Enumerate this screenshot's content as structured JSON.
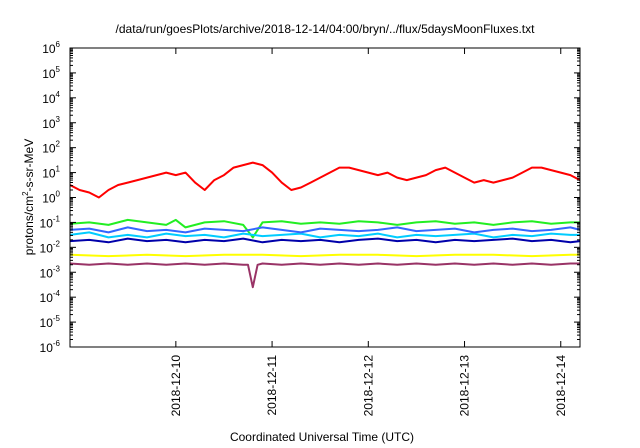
{
  "chart_data": {
    "type": "line",
    "title": "/data/run/goesPlots/archive/2018-12-14/04:00/bryn/../flux/5daysMoonFluxes.txt",
    "xlabel": "Coordinated Universal Time (UTC)",
    "ylabel": {
      "prefix": "protons/cm",
      "superscript": "2",
      "suffix": "-s-sr-MeV"
    },
    "yscale": "log",
    "ylim_exponents": [
      -6,
      6
    ],
    "y_tick_labels": [
      {
        "base": "10",
        "exp": "-6"
      },
      {
        "base": "10",
        "exp": "-5"
      },
      {
        "base": "10",
        "exp": "-4"
      },
      {
        "base": "10",
        "exp": "-3"
      },
      {
        "base": "10",
        "exp": "-2"
      },
      {
        "base": "10",
        "exp": "-1"
      },
      {
        "base": "10",
        "exp": "0"
      },
      {
        "base": "10",
        "exp": "1"
      },
      {
        "base": "10",
        "exp": "2"
      },
      {
        "base": "10",
        "exp": "3"
      },
      {
        "base": "10",
        "exp": "4"
      },
      {
        "base": "10",
        "exp": "5"
      },
      {
        "base": "10",
        "exp": "6"
      }
    ],
    "x_tick_labels": [
      "2018-12-10",
      "2018-12-11",
      "2018-12-12",
      "2018-12-13",
      "2018-12-14"
    ],
    "xlim_days": [
      -1.1,
      4.2
    ],
    "x_tick_days": [
      0,
      1,
      2,
      3,
      4
    ],
    "grid": false,
    "legend": "none",
    "series": [
      {
        "color": "#ff0000",
        "x_days": [
          -1.1,
          -1.0,
          -0.9,
          -0.8,
          -0.7,
          -0.6,
          -0.5,
          -0.4,
          -0.3,
          -0.2,
          -0.1,
          0.0,
          0.1,
          0.2,
          0.3,
          0.4,
          0.5,
          0.6,
          0.7,
          0.8,
          0.9,
          1.0,
          1.1,
          1.2,
          1.3,
          1.4,
          1.5,
          1.6,
          1.7,
          1.8,
          1.9,
          2.0,
          2.1,
          2.2,
          2.3,
          2.4,
          2.5,
          2.6,
          2.7,
          2.8,
          2.9,
          3.0,
          3.1,
          3.2,
          3.3,
          3.4,
          3.5,
          3.6,
          3.7,
          3.8,
          3.9,
          4.0,
          4.1,
          4.2
        ],
        "log10_values": [
          0.5,
          0.3,
          0.2,
          0.0,
          0.3,
          0.5,
          0.6,
          0.7,
          0.8,
          0.9,
          1.0,
          0.9,
          1.0,
          0.6,
          0.3,
          0.7,
          0.9,
          1.2,
          1.3,
          1.4,
          1.3,
          1.0,
          0.6,
          0.3,
          0.4,
          0.6,
          0.8,
          1.0,
          1.2,
          1.2,
          1.1,
          1.0,
          0.9,
          1.0,
          0.8,
          0.7,
          0.8,
          0.9,
          1.1,
          1.2,
          1.0,
          0.8,
          0.6,
          0.7,
          0.6,
          0.7,
          0.8,
          1.0,
          1.2,
          1.2,
          1.1,
          1.0,
          0.9,
          0.7
        ]
      },
      {
        "color": "#22ee22",
        "x_days": [
          -1.1,
          -0.9,
          -0.7,
          -0.5,
          -0.3,
          -0.1,
          0.0,
          0.1,
          0.3,
          0.5,
          0.7,
          0.8,
          0.9,
          1.1,
          1.3,
          1.5,
          1.7,
          1.9,
          2.1,
          2.3,
          2.5,
          2.7,
          2.9,
          3.1,
          3.3,
          3.5,
          3.7,
          3.9,
          4.1,
          4.2
        ],
        "log10_values": [
          -1.05,
          -1.0,
          -1.1,
          -0.9,
          -1.0,
          -1.1,
          -0.9,
          -1.2,
          -1.0,
          -0.95,
          -1.1,
          -1.6,
          -1.0,
          -0.95,
          -1.05,
          -1.0,
          -1.05,
          -0.95,
          -1.0,
          -1.1,
          -1.0,
          -0.95,
          -1.05,
          -1.0,
          -1.1,
          -1.0,
          -0.95,
          -1.05,
          -1.0,
          -1.0
        ]
      },
      {
        "color": "#00ccff",
        "x_days": [
          -1.1,
          -0.9,
          -0.7,
          -0.5,
          -0.3,
          -0.1,
          0.1,
          0.3,
          0.5,
          0.7,
          0.9,
          1.1,
          1.3,
          1.5,
          1.7,
          1.9,
          2.1,
          2.3,
          2.5,
          2.7,
          2.9,
          3.1,
          3.3,
          3.5,
          3.7,
          3.9,
          4.1,
          4.2
        ],
        "log10_values": [
          -1.5,
          -1.4,
          -1.6,
          -1.5,
          -1.6,
          -1.45,
          -1.55,
          -1.5,
          -1.6,
          -1.45,
          -1.55,
          -1.5,
          -1.45,
          -1.6,
          -1.5,
          -1.55,
          -1.45,
          -1.6,
          -1.5,
          -1.55,
          -1.5,
          -1.45,
          -1.6,
          -1.5,
          -1.55,
          -1.45,
          -1.5,
          -1.5
        ]
      },
      {
        "color": "#3366ff",
        "x_days": [
          -1.1,
          -0.9,
          -0.7,
          -0.5,
          -0.3,
          -0.1,
          0.1,
          0.3,
          0.5,
          0.7,
          0.9,
          1.1,
          1.3,
          1.5,
          1.7,
          1.9,
          2.1,
          2.3,
          2.5,
          2.7,
          2.9,
          3.1,
          3.3,
          3.5,
          3.7,
          3.9,
          4.1,
          4.2
        ],
        "log10_values": [
          -1.3,
          -1.25,
          -1.4,
          -1.2,
          -1.35,
          -1.3,
          -1.4,
          -1.25,
          -1.3,
          -1.35,
          -1.2,
          -1.3,
          -1.4,
          -1.25,
          -1.3,
          -1.35,
          -1.3,
          -1.2,
          -1.35,
          -1.3,
          -1.25,
          -1.4,
          -1.3,
          -1.25,
          -1.35,
          -1.3,
          -1.2,
          -1.3
        ]
      },
      {
        "color": "#0000aa",
        "x_days": [
          -1.1,
          -0.9,
          -0.7,
          -0.5,
          -0.3,
          -0.1,
          0.1,
          0.3,
          0.5,
          0.7,
          0.9,
          1.1,
          1.3,
          1.5,
          1.7,
          1.9,
          2.1,
          2.3,
          2.5,
          2.7,
          2.9,
          3.1,
          3.3,
          3.5,
          3.7,
          3.9,
          4.1,
          4.2
        ],
        "log10_values": [
          -1.75,
          -1.7,
          -1.8,
          -1.65,
          -1.75,
          -1.7,
          -1.8,
          -1.7,
          -1.75,
          -1.65,
          -1.8,
          -1.7,
          -1.75,
          -1.7,
          -1.8,
          -1.7,
          -1.65,
          -1.75,
          -1.7,
          -1.8,
          -1.7,
          -1.75,
          -1.7,
          -1.65,
          -1.75,
          -1.7,
          -1.8,
          -1.75
        ]
      },
      {
        "color": "#ffff00",
        "x_days": [
          -1.1,
          -0.7,
          -0.3,
          0.1,
          0.5,
          0.9,
          1.3,
          1.7,
          2.1,
          2.5,
          2.9,
          3.3,
          3.7,
          4.1,
          4.2
        ],
        "log10_values": [
          -2.3,
          -2.35,
          -2.3,
          -2.35,
          -2.3,
          -2.3,
          -2.35,
          -2.3,
          -2.3,
          -2.35,
          -2.3,
          -2.3,
          -2.35,
          -2.3,
          -2.3
        ]
      },
      {
        "color": "#993366",
        "x_days": [
          -1.1,
          -0.9,
          -0.7,
          -0.5,
          -0.3,
          -0.1,
          0.1,
          0.3,
          0.5,
          0.7,
          0.75,
          0.8,
          0.85,
          0.9,
          1.1,
          1.3,
          1.5,
          1.7,
          1.9,
          2.1,
          2.3,
          2.5,
          2.7,
          2.9,
          3.1,
          3.3,
          3.5,
          3.7,
          3.9,
          4.1,
          4.2
        ],
        "log10_values": [
          -2.65,
          -2.7,
          -2.65,
          -2.7,
          -2.65,
          -2.7,
          -2.65,
          -2.7,
          -2.65,
          -2.7,
          -2.7,
          -3.6,
          -2.7,
          -2.65,
          -2.7,
          -2.65,
          -2.7,
          -2.65,
          -2.7,
          -2.65,
          -2.7,
          -2.65,
          -2.7,
          -2.65,
          -2.7,
          -2.65,
          -2.7,
          -2.65,
          -2.7,
          -2.65,
          -2.65
        ]
      }
    ]
  }
}
